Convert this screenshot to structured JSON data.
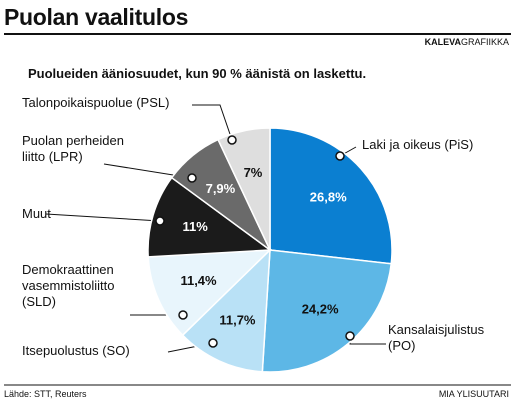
{
  "chart_data": {
    "type": "pie",
    "title": "Puolan vaalitulos",
    "brand": {
      "name": "KALEVA",
      "unit": "GRAFIIKKA"
    },
    "subtitle": "Puolueiden ääniosuudet, kun 90 % äänistä on laskettu.",
    "categories": [
      "Laki ja oikeus (PiS)",
      "Kansalaisjulistus (PO)",
      "Itsepuolustus (SO)",
      "Demokraattinen vasemmistoliitto (SLD)",
      "Muut",
      "Puolan perheiden liitto (LPR)",
      "Talonpoikaispuolue (PSL)"
    ],
    "values": [
      26.8,
      24.2,
      11.7,
      11.4,
      11,
      7.9,
      7
    ],
    "value_labels": [
      "26,8%",
      "24,2%",
      "11,7%",
      "11,4%",
      "11%",
      "7,9%",
      "7%"
    ],
    "colors": [
      "#0b7fd1",
      "#5db7e6",
      "#b9e1f6",
      "#e8f5fc",
      "#1b1b1b",
      "#6a6a6a",
      "#dedede"
    ],
    "label_colors": [
      "#ffffff",
      "#111111",
      "#111111",
      "#111111",
      "#ffffff",
      "#ffffff",
      "#111111"
    ],
    "source": "Lähde: STT, Reuters",
    "credit": "MIA YLISUUTARI"
  }
}
